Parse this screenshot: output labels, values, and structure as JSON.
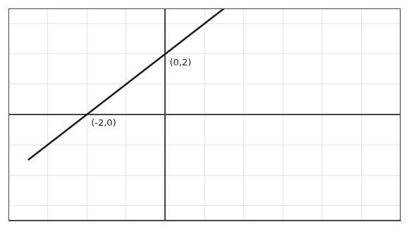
{
  "chart_data": {
    "type": "line",
    "x": [
      -3.5,
      1.5
    ],
    "series": [
      {
        "values": [
          -1.5,
          3.5
        ],
        "color": "#1a1a1a"
      }
    ],
    "xlim": [
      -4,
      6
    ],
    "ylim": [
      -3.5,
      3.5
    ],
    "xticks": [
      -4,
      -3,
      -2,
      -1,
      0,
      1,
      2,
      3,
      4,
      5,
      6
    ],
    "yticks": [
      -3,
      -2,
      -1,
      0,
      1,
      2,
      3
    ],
    "grid": true,
    "tick_labels": false,
    "annotations": [
      {
        "text": "(0,2)",
        "x": 0,
        "y": 2
      },
      {
        "text": "(-2,0)",
        "x": -2,
        "y": 0
      }
    ]
  }
}
